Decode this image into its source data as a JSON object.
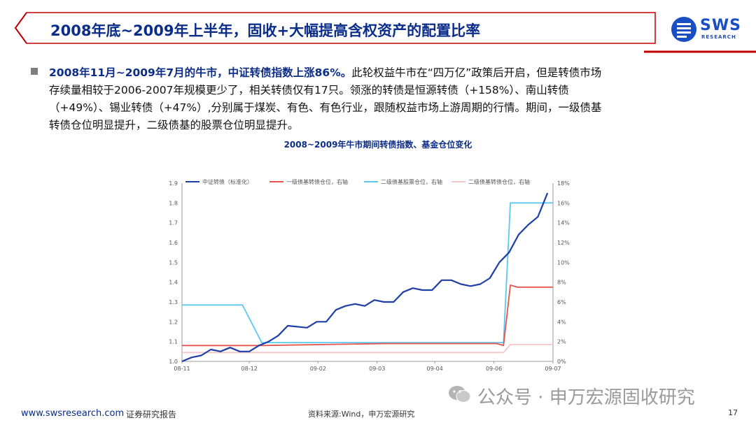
{
  "slide": {
    "title": "2008年底~2009年上半年，固收+大幅提高含权资产的配置比率",
    "logo_text": "SWS",
    "logo_sub": "RESEARCH",
    "bullet_bold": "2008年11月~2009年7月的牛市，中证转债指数上涨86%。",
    "bullet_line1_rest": "此轮权益牛市在“四万亿”政策后开启，但是转债市场",
    "bullet_line2": "存续量相较于2006-2007年规模更少了，相关转债仅有17只。领涨的转债是恒源转债（+158%）、南山转债",
    "bullet_line3": "（+49%）、锡业转债（+47%）,分别属于煤炭、有色、有色行业，跟随权益市场上游周期的行情。期间，一级债基",
    "bullet_line4": "转债仓位明显提升，二级债基的股票仓位明显提升。"
  },
  "footer": {
    "url": "www.swsresearch.com",
    "category": "证券研究报告",
    "source": "资料来源:Wind，申万宏源研究",
    "page": "17",
    "watermark": "公众号 · 申万宏源固收研究"
  },
  "colors": {
    "title_blue": "#0b2d8a",
    "series1": "#1f3fa8",
    "series2": "#e8534d",
    "series3": "#5cc8f0",
    "series4": "#f6c6c6"
  },
  "chart_data": {
    "type": "line",
    "title": "2008~2009年牛市期间转债指数、基金仓位变化",
    "x_ticks": [
      "08-11",
      "08-12",
      "09-02",
      "09-03",
      "09-04",
      "09-06",
      "09-07"
    ],
    "left_axis": {
      "ylim": [
        1.0,
        1.9
      ],
      "ticks": [
        "1.0",
        "1.1",
        "1.2",
        "1.3",
        "1.4",
        "1.5",
        "1.6",
        "1.7",
        "1.8",
        "1.9"
      ]
    },
    "right_axis": {
      "ylim": [
        0,
        18
      ],
      "ticks": [
        "0%",
        "2%",
        "4%",
        "6%",
        "8%",
        "10%",
        "12%",
        "14%",
        "16%",
        "18%"
      ]
    },
    "grid": false,
    "legend_position": "top",
    "series": [
      {
        "name": "中证转债（标准化）",
        "axis": "left",
        "x": [
          "2008-11-03",
          "2008-11-10",
          "2008-11-17",
          "2008-11-24",
          "2008-12-01",
          "2008-12-08",
          "2008-12-15",
          "2008-12-22",
          "2008-12-29",
          "2009-01-05",
          "2009-01-12",
          "2009-01-19",
          "2009-02-02",
          "2009-02-09",
          "2009-02-16",
          "2009-02-23",
          "2009-03-02",
          "2009-03-09",
          "2009-03-16",
          "2009-03-23",
          "2009-03-30",
          "2009-04-06",
          "2009-04-13",
          "2009-04-20",
          "2009-04-27",
          "2009-05-04",
          "2009-05-11",
          "2009-05-18",
          "2009-05-25",
          "2009-06-01",
          "2009-06-08",
          "2009-06-15",
          "2009-06-22",
          "2009-06-29",
          "2009-07-06",
          "2009-07-13",
          "2009-07-20",
          "2009-07-27"
        ],
        "values": [
          1.0,
          1.02,
          1.03,
          1.06,
          1.05,
          1.07,
          1.05,
          1.05,
          1.08,
          1.1,
          1.13,
          1.18,
          1.17,
          1.2,
          1.2,
          1.26,
          1.28,
          1.29,
          1.28,
          1.31,
          1.3,
          1.3,
          1.35,
          1.37,
          1.36,
          1.36,
          1.41,
          1.41,
          1.39,
          1.38,
          1.39,
          1.42,
          1.5,
          1.55,
          1.64,
          1.69,
          1.73,
          1.85
        ]
      },
      {
        "name": "一级债基转债仓位，右轴",
        "axis": "right",
        "x": [
          "2008-11-03",
          "2008-12-31",
          "2009-03-31",
          "2009-06-20",
          "2009-06-25",
          "2009-06-30",
          "2009-07-05",
          "2009-07-31"
        ],
        "values": [
          1.6,
          1.6,
          1.8,
          1.8,
          1.6,
          7.7,
          7.5,
          7.5
        ]
      },
      {
        "name": "二级债基股票仓位，右轴",
        "axis": "right",
        "x": [
          "2008-11-03",
          "2008-12-17",
          "2008-12-31",
          "2009-06-25",
          "2009-06-30",
          "2009-07-31"
        ],
        "values": [
          5.7,
          5.7,
          1.9,
          1.9,
          16.0,
          16.0
        ]
      },
      {
        "name": "二级债基转债仓位，右轴",
        "axis": "right",
        "x": [
          "2008-11-03",
          "2009-06-25",
          "2009-06-30",
          "2009-07-31"
        ],
        "values": [
          0.9,
          0.9,
          1.7,
          1.7
        ]
      }
    ]
  }
}
